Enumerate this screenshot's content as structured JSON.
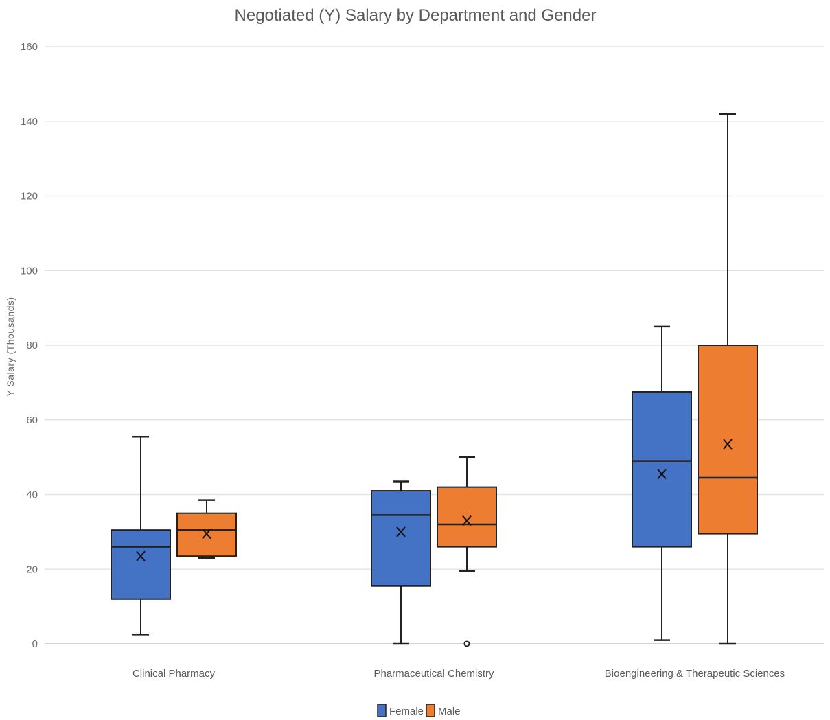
{
  "chart_data": {
    "type": "box",
    "title": "Negotiated (Y) Salary by Department and Gender",
    "xlabel": "",
    "ylabel": "Y Salary (Thousands)",
    "ylim": [
      0,
      160
    ],
    "yticks": [
      0,
      20,
      40,
      60,
      80,
      100,
      120,
      140,
      160
    ],
    "grid": true,
    "legend_position": "bottom",
    "categories": [
      "Clinical Pharmacy",
      "Pharmaceutical Chemistry",
      "Bioengineering & Therapeutic Sciences"
    ],
    "series": [
      {
        "name": "Female",
        "color": "#4472c4",
        "boxes": [
          {
            "min": 2.5,
            "q1": 12,
            "median": 26,
            "q3": 30.5,
            "max": 55.5,
            "mean": 23.5,
            "outliers": []
          },
          {
            "min": 0,
            "q1": 15.5,
            "median": 34.5,
            "q3": 41,
            "max": 43.5,
            "mean": 30,
            "outliers": []
          },
          {
            "min": 1,
            "q1": 26,
            "median": 49,
            "q3": 67.5,
            "max": 85,
            "mean": 45.5,
            "outliers": []
          }
        ]
      },
      {
        "name": "Male",
        "color": "#ed7d31",
        "boxes": [
          {
            "min": 23,
            "q1": 23.5,
            "median": 30.5,
            "q3": 35,
            "max": 38.5,
            "mean": 29.5,
            "outliers": []
          },
          {
            "min": 19.5,
            "q1": 26,
            "median": 32,
            "q3": 42,
            "max": 50,
            "mean": 33,
            "outliers": [
              0
            ]
          },
          {
            "min": 0,
            "q1": 29.5,
            "median": 44.5,
            "q3": 80,
            "max": 142,
            "mean": 53.5,
            "outliers": []
          }
        ]
      }
    ]
  }
}
